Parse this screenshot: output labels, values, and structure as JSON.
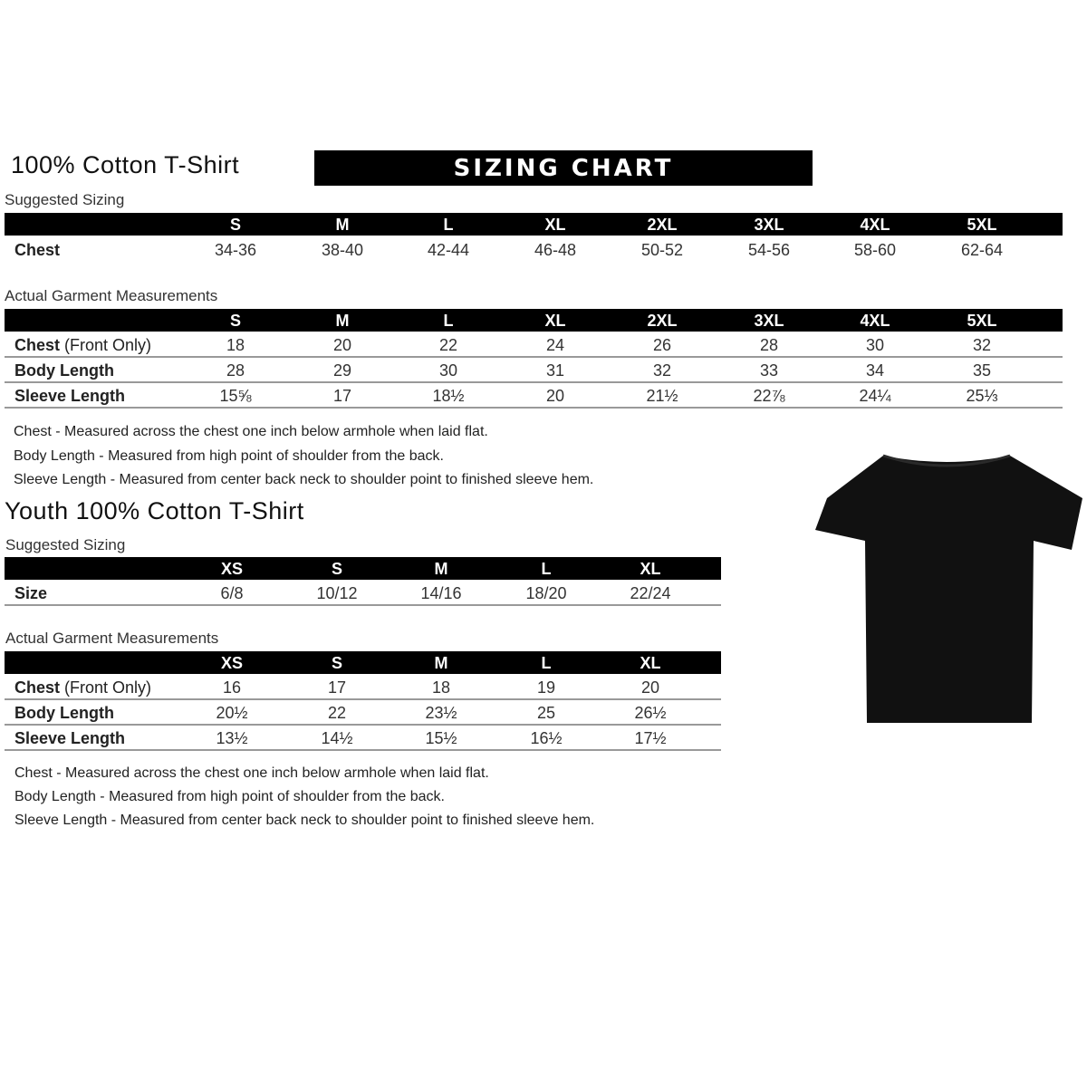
{
  "adult": {
    "title": "100% Cotton T-Shirt",
    "banner": "SIZING CHART",
    "suggested": {
      "label": "Suggested Sizing",
      "sizes": [
        "S",
        "M",
        "L",
        "XL",
        "2XL",
        "3XL",
        "4XL",
        "5XL"
      ],
      "rows": [
        {
          "label": "Chest",
          "values": [
            "34-36",
            "38-40",
            "42-44",
            "46-48",
            "50-52",
            "54-56",
            "58-60",
            "62-64"
          ]
        }
      ]
    },
    "actual": {
      "label": "Actual Garment Measurements",
      "sizes": [
        "S",
        "M",
        "L",
        "XL",
        "2XL",
        "3XL",
        "4XL",
        "5XL"
      ],
      "rows": [
        {
          "label": "Chest",
          "label_suffix": " (Front Only)",
          "values": [
            "18",
            "20",
            "22",
            "24",
            "26",
            "28",
            "30",
            "32"
          ]
        },
        {
          "label": "Body Length",
          "values": [
            "28",
            "29",
            "30",
            "31",
            "32",
            "33",
            "34",
            "35"
          ]
        },
        {
          "label": "Sleeve Length",
          "values": [
            "15⅝",
            "17",
            "18½",
            "20",
            "21½",
            "22⅞",
            "24¼",
            "25⅓"
          ]
        }
      ]
    },
    "notes": [
      "Chest - Measured across the chest one inch below armhole when laid flat.",
      "Body Length - Measured from high point of shoulder from the back.",
      "Sleeve Length - Measured from center back neck to shoulder point to finished sleeve hem."
    ]
  },
  "youth": {
    "title": "Youth 100% Cotton T-Shirt",
    "suggested": {
      "label": "Suggested Sizing",
      "sizes": [
        "XS",
        "S",
        "M",
        "L",
        "XL"
      ],
      "rows": [
        {
          "label": "Size",
          "values": [
            "6/8",
            "10/12",
            "14/16",
            "18/20",
            "22/24"
          ]
        }
      ]
    },
    "actual": {
      "label": "Actual Garment Measurements",
      "sizes": [
        "XS",
        "S",
        "M",
        "L",
        "XL"
      ],
      "rows": [
        {
          "label": "Chest",
          "label_suffix": " (Front Only)",
          "values": [
            "16",
            "17",
            "18",
            "19",
            "20"
          ]
        },
        {
          "label": "Body Length",
          "values": [
            "20½",
            "22",
            "23½",
            "25",
            "26½"
          ]
        },
        {
          "label": "Sleeve Length",
          "values": [
            "13½",
            "14½",
            "15½",
            "16½",
            "17½"
          ]
        }
      ]
    },
    "notes": [
      "Chest - Measured across the chest one inch below armhole when laid flat.",
      "Body Length - Measured from high point of shoulder from the back.",
      "Sleeve Length - Measured from center back neck to shoulder point to finished sleeve hem."
    ]
  },
  "image": {
    "icon": "tshirt-icon",
    "color": "#111111"
  }
}
